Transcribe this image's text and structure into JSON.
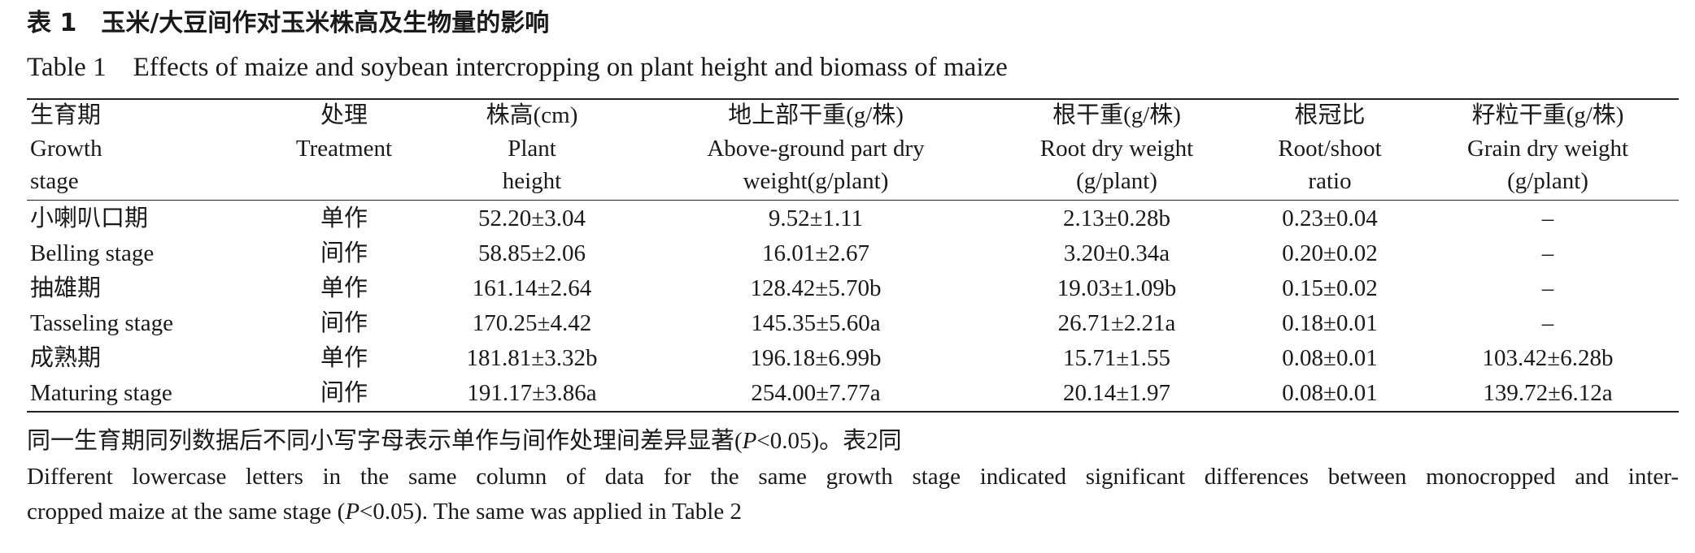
{
  "title_cn": "表 1　玉米/大豆间作对玉米株高及生物量的影响",
  "title_en": "Table 1　Effects of maize and soybean intercropping on plant height and biomass of maize",
  "table": {
    "header": [
      [
        "生育期",
        "Growth",
        "stage"
      ],
      [
        "处理",
        "Treatment"
      ],
      [
        "株高(cm)",
        "Plant",
        "height"
      ],
      [
        "地上部干重(g/株)",
        "Above-ground part dry",
        "weight(g/plant)"
      ],
      [
        "根干重(g/株)",
        "Root dry weight",
        "(g/plant)"
      ],
      [
        "根冠比",
        "Root/shoot",
        "ratio"
      ],
      [
        "籽粒干重(g/株)",
        "Grain dry weight",
        "(g/plant)"
      ]
    ],
    "rows": [
      [
        "小喇叭口期",
        "单作",
        "52.20±3.04",
        "9.52±1.11",
        "2.13±0.28b",
        "0.23±0.04",
        "–"
      ],
      [
        "Belling stage",
        "间作",
        "58.85±2.06",
        "16.01±2.67",
        "3.20±0.34a",
        "0.20±0.02",
        "–"
      ],
      [
        "抽雄期",
        "单作",
        "161.14±2.64",
        "128.42±5.70b",
        "19.03±1.09b",
        "0.15±0.02",
        "–"
      ],
      [
        "Tasseling stage",
        "间作",
        "170.25±4.42",
        "145.35±5.60a",
        "26.71±2.21a",
        "0.18±0.01",
        "–"
      ],
      [
        "成熟期",
        "单作",
        "181.81±3.32b",
        "196.18±6.99b",
        "15.71±1.55",
        "0.08±0.01",
        "103.42±6.28b"
      ],
      [
        "Maturing stage",
        "间作",
        "191.17±3.86a",
        "254.00±7.77a",
        "20.14±1.97",
        "0.08±0.01",
        "139.72±6.12a"
      ]
    ]
  },
  "note_cn": [
    "同一生育期同列数据后不同小写字母表示单作与间作处理间差异显著(",
    "P",
    "<0.05)。表2同"
  ],
  "note_en": [
    "Different lowercase letters in the same column of data for the same growth stage indicated significant differences between monocropped and inter-",
    "cropped maize at the same stage (",
    "P",
    "<0.05). The same was applied in Table 2"
  ]
}
